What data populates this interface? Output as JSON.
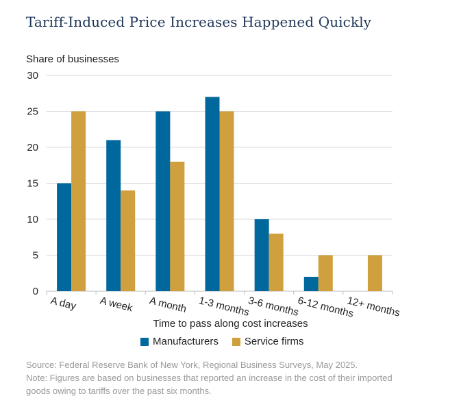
{
  "chart_data": {
    "type": "bar",
    "title": "Tariff-Induced Price Increases Happened Quickly",
    "ylabel": "Share of businesses",
    "xlabel": "Time to pass along cost increases",
    "categories": [
      "A day",
      "A week",
      "A month",
      "1-3 months",
      "3-6 months",
      "6-12 months",
      "12+ months"
    ],
    "series": [
      {
        "name": "Manufacturers",
        "values": [
          15,
          21,
          25,
          27,
          10,
          2,
          null
        ],
        "color": "#00689d"
      },
      {
        "name": "Service firms",
        "values": [
          25,
          14,
          18,
          25,
          8,
          5,
          5
        ],
        "color": "#d1a03e"
      }
    ],
    "ylim": [
      0,
      30
    ],
    "yticks": [
      0,
      5,
      10,
      15,
      20,
      25,
      30
    ],
    "grid": true,
    "legend": "bottom"
  },
  "footnotes": {
    "source": "Source: Federal Reserve Bank of New York, Regional Business Surveys, May 2025.",
    "note_line1": "Note: Figures are based on businesses that reported an increase in the cost of their imported",
    "note_line2": "goods owing to tariffs over the past six months."
  }
}
